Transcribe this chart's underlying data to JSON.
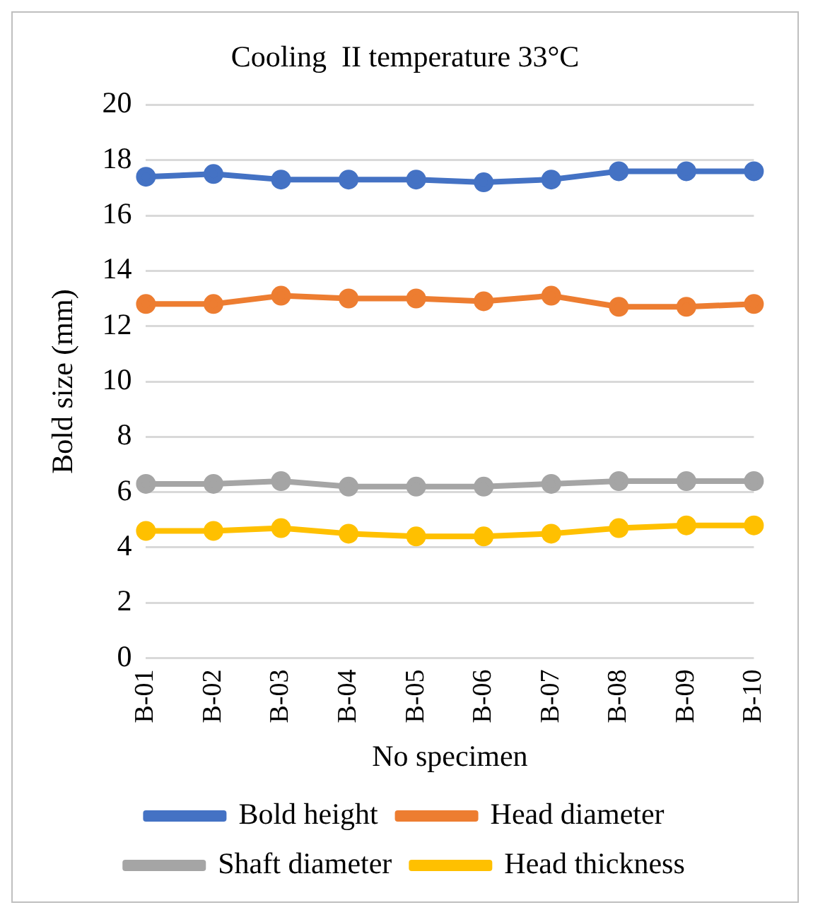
{
  "chart_data": {
    "type": "line",
    "title": "Cooling  II temperature 33°C",
    "xlabel": "No specimen",
    "ylabel": "Bold size (mm)",
    "categories": [
      "B-01",
      "B-02",
      "B-03",
      "B-04",
      "B-05",
      "B-06",
      "B-07",
      "B-08",
      "B-09",
      "B-10"
    ],
    "series": [
      {
        "name": "Bold height",
        "color": "#4472c4",
        "values": [
          17.4,
          17.5,
          17.3,
          17.3,
          17.3,
          17.2,
          17.3,
          17.6,
          17.6,
          17.6
        ]
      },
      {
        "name": "Head diameter",
        "color": "#ed7d31",
        "values": [
          12.8,
          12.8,
          13.1,
          13.0,
          13.0,
          12.9,
          13.1,
          12.7,
          12.7,
          12.8
        ]
      },
      {
        "name": "Shaft diameter",
        "color": "#a5a5a5",
        "values": [
          6.3,
          6.3,
          6.4,
          6.2,
          6.2,
          6.2,
          6.3,
          6.4,
          6.4,
          6.4
        ]
      },
      {
        "name": "Head thickness",
        "color": "#ffc000",
        "values": [
          4.6,
          4.6,
          4.7,
          4.5,
          4.4,
          4.4,
          4.5,
          4.7,
          4.8,
          4.8
        ]
      }
    ],
    "ylim": [
      0,
      20
    ],
    "yticks": [
      0,
      2,
      4,
      6,
      8,
      10,
      12,
      14,
      16,
      18,
      20
    ],
    "grid": "y",
    "legend": "bottom",
    "marker": "circle",
    "line_style": "solid"
  }
}
